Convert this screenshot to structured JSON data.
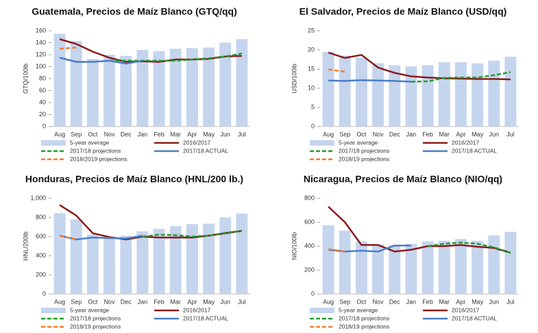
{
  "chart_data": [
    {
      "type": "combo",
      "title": "Guatemala, Precios de Maíz Blanco (GTQ/qq)",
      "y_label": "GTQ/100lb",
      "categories": [
        "Aug",
        "Sep",
        "Oct",
        "Nov",
        "Dec",
        "Jan",
        "Feb",
        "Mar",
        "Apr",
        "May",
        "Jun",
        "Jul"
      ],
      "ylim": [
        0,
        160
      ],
      "yticks": [
        0,
        20,
        40,
        60,
        80,
        100,
        120,
        140,
        160
      ],
      "series": [
        {
          "name": "5-year average",
          "type": "bar",
          "color": "#c5d5ee",
          "values": [
            155,
            143,
            113,
            120,
            118,
            128,
            126,
            130,
            131,
            132,
            140,
            146
          ]
        },
        {
          "name": "2016/2017",
          "type": "line",
          "color": "#8b1a1a",
          "values": [
            146,
            138,
            125,
            115,
            108,
            109,
            108,
            112,
            112,
            113,
            117,
            118
          ]
        },
        {
          "name": "2017/18 projections",
          "type": "line",
          "dashed": true,
          "color": "#1e9e2a",
          "values": [
            null,
            null,
            null,
            110,
            110,
            110,
            110,
            110,
            112,
            114,
            117,
            122
          ]
        },
        {
          "name": "2017/18 ACTUAL",
          "type": "line",
          "color": "#4a7cc9",
          "values": [
            115,
            108,
            108,
            110,
            105,
            110,
            null,
            null,
            null,
            null,
            null,
            null
          ]
        },
        {
          "name": "2018/2019 projections",
          "type": "line",
          "dashed": true,
          "color": "#f07f2a",
          "values": [
            130,
            132,
            null,
            null,
            null,
            null,
            null,
            null,
            null,
            null,
            null,
            null
          ]
        }
      ]
    },
    {
      "type": "combo",
      "title": "El Salvador, Precios de Maíz Blanco (USD/qq)",
      "y_label": "USD/100lb",
      "categories": [
        "Aug",
        "Sep",
        "Oct",
        "Nov",
        "Dec",
        "Jan",
        "Feb",
        "Mar",
        "Apr",
        "May",
        "Jun",
        "Jul"
      ],
      "ylim": [
        0,
        25
      ],
      "yticks": [
        0,
        5,
        10,
        15,
        20,
        25
      ],
      "series": [
        {
          "name": "5-year average",
          "type": "bar",
          "color": "#c5d5ee",
          "values": [
            19.5,
            18.5,
            18,
            16.5,
            16,
            15.7,
            16,
            16.8,
            16.8,
            16.5,
            17.2,
            18.2
          ]
        },
        {
          "name": "2016/2017",
          "type": "line",
          "color": "#8b1a1a",
          "values": [
            19.3,
            17.9,
            18.7,
            15.4,
            14,
            13.1,
            12.8,
            12.6,
            12.5,
            12.4,
            12.4,
            12.3
          ]
        },
        {
          "name": "2017/18 projections",
          "type": "line",
          "dashed": true,
          "color": "#1e9e2a",
          "values": [
            null,
            null,
            null,
            null,
            null,
            11.7,
            11.8,
            12.7,
            12.8,
            12.8,
            13.4,
            14.2
          ]
        },
        {
          "name": "2017/18 ACTUAL",
          "type": "line",
          "color": "#4a7cc9",
          "values": [
            12,
            11.9,
            12.1,
            12,
            11.9,
            11.7,
            null,
            null,
            null,
            null,
            null,
            null
          ]
        },
        {
          "name": "2018/19 projections",
          "type": "line",
          "dashed": true,
          "color": "#f07f2a",
          "values": [
            14.9,
            14.3,
            null,
            null,
            null,
            null,
            null,
            null,
            null,
            null,
            null,
            null
          ]
        }
      ]
    },
    {
      "type": "combo",
      "title": "Honduras, Precios de Maíz Blanco (HNL/200 lb.)",
      "y_label": "HNL/200lb",
      "categories": [
        "Aug",
        "Sep",
        "Oct",
        "Nov",
        "Dec",
        "Jan",
        "Feb",
        "Mar",
        "Apr",
        "May",
        "Jun",
        "Jul"
      ],
      "ylim": [
        0,
        1000
      ],
      "yticks": [
        0,
        200,
        400,
        600,
        800,
        {
          "value": 1000,
          "label": "1,000"
        }
      ],
      "series": [
        {
          "name": "5-year average",
          "type": "bar",
          "color": "#c5d5ee",
          "values": [
            845,
            780,
            620,
            600,
            610,
            655,
            680,
            710,
            730,
            735,
            800,
            840
          ]
        },
        {
          "name": "2016/2017",
          "type": "line",
          "color": "#8b1a1a",
          "values": [
            930,
            820,
            635,
            595,
            570,
            600,
            590,
            590,
            590,
            610,
            635,
            660
          ]
        },
        {
          "name": "2017/18 projections",
          "type": "line",
          "dashed": true,
          "color": "#1e9e2a",
          "values": [
            null,
            null,
            null,
            null,
            null,
            600,
            620,
            615,
            600,
            610,
            640,
            660
          ]
        },
        {
          "name": "2017/18 ACTUAL",
          "type": "line",
          "color": "#4a7cc9",
          "values": [
            610,
            570,
            590,
            585,
            580,
            610,
            null,
            null,
            null,
            null,
            null,
            null
          ]
        },
        {
          "name": "2018/19 projections",
          "type": "line",
          "dashed": true,
          "color": "#f07f2a",
          "values": [
            610,
            570,
            null,
            null,
            null,
            null,
            null,
            null,
            null,
            null,
            null,
            null
          ]
        }
      ]
    },
    {
      "type": "combo",
      "title": "Nicaragua, Precios de Maíz Blanco (NIO/qq)",
      "y_label": "NIO/100lb",
      "categories": [
        "Aug",
        "Sep",
        "Oct",
        "Nov",
        "Dec",
        "Jan",
        "Feb",
        "Mar",
        "Apr",
        "May",
        "Jun",
        "Jul"
      ],
      "ylim": [
        0,
        800
      ],
      "yticks": [
        0,
        200,
        400,
        600,
        800
      ],
      "series": [
        {
          "name": "5-year average",
          "type": "bar",
          "color": "#c5d5ee",
          "values": [
            575,
            530,
            440,
            415,
            410,
            420,
            440,
            445,
            460,
            445,
            490,
            520
          ]
        },
        {
          "name": "2016/2017",
          "type": "line",
          "color": "#8b1a1a",
          "values": [
            730,
            600,
            410,
            410,
            355,
            370,
            400,
            400,
            410,
            395,
            385,
            345
          ]
        },
        {
          "name": "2017/18 projections",
          "type": "line",
          "dashed": true,
          "color": "#1e9e2a",
          "values": [
            null,
            null,
            null,
            null,
            null,
            null,
            400,
            420,
            430,
            420,
            390,
            345
          ]
        },
        {
          "name": "2017/18 ACTUAL",
          "type": "line",
          "color": "#4a7cc9",
          "values": [
            370,
            355,
            362,
            355,
            405,
            405,
            null,
            null,
            null,
            null,
            null,
            null
          ]
        },
        {
          "name": "2018/19 projections",
          "type": "line",
          "dashed": true,
          "color": "#f07f2a",
          "values": [
            375,
            355,
            null,
            null,
            null,
            null,
            null,
            null,
            null,
            null,
            null,
            null
          ]
        }
      ]
    }
  ]
}
